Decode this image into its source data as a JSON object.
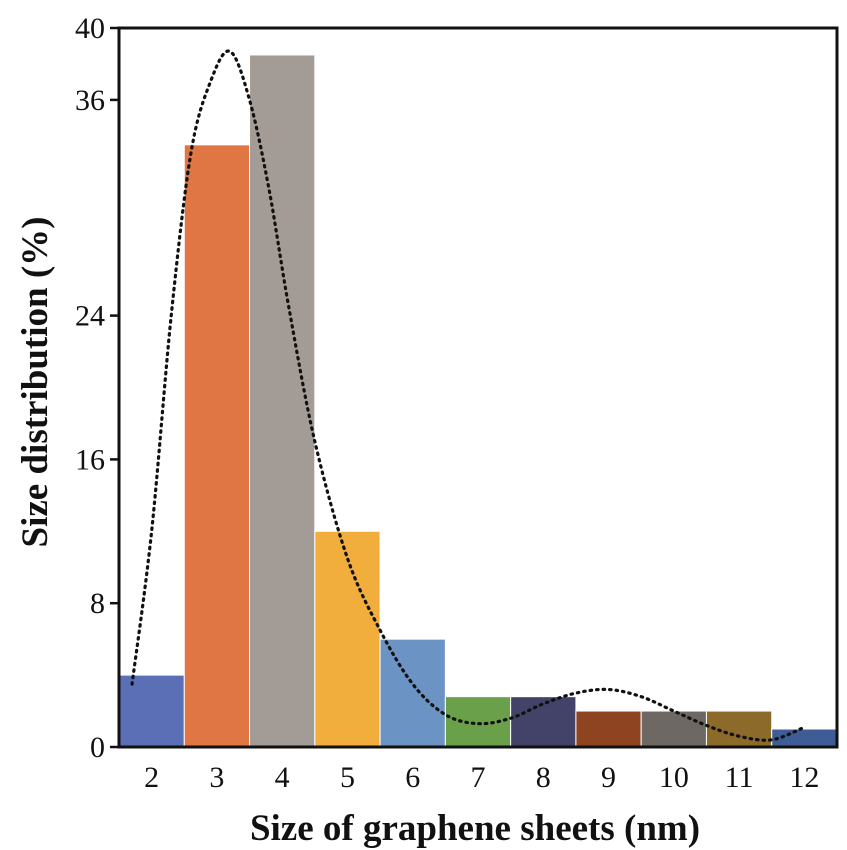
{
  "chart_data": {
    "type": "bar",
    "title": "",
    "xlabel": "Size of graphene sheets (nm)",
    "ylabel": "Size distribution (%)",
    "ylim": [
      0,
      40
    ],
    "y_ticks": [
      "0",
      "8",
      "16",
      "24",
      "36",
      "40"
    ],
    "x_ticks": [
      "2",
      "3",
      "4",
      "5",
      "6",
      "7",
      "8",
      "9",
      "10",
      "11",
      "12"
    ],
    "bars": [
      {
        "from": 2,
        "to": 3,
        "value": 4,
        "color": "#5b6fb6"
      },
      {
        "from": 3,
        "to": 4,
        "value": 33.5,
        "color": "#e07643"
      },
      {
        "from": 4,
        "to": 5,
        "value": 38.5,
        "color": "#a39b95"
      },
      {
        "from": 5,
        "to": 6,
        "value": 12,
        "color": "#f2ae3c"
      },
      {
        "from": 6,
        "to": 7,
        "value": 6,
        "color": "#6b93c4"
      },
      {
        "from": 7,
        "to": 8,
        "value": 2.8,
        "color": "#6aa049"
      },
      {
        "from": 8,
        "to": 9,
        "value": 2.8,
        "color": "#434268"
      },
      {
        "from": 9,
        "to": 10,
        "value": 2,
        "color": "#8e4420"
      },
      {
        "from": 10,
        "to": 11,
        "value": 2,
        "color": "#6e6864"
      },
      {
        "from": 11,
        "to": 12,
        "value": 2,
        "color": "#8c6a2a"
      },
      {
        "from": 12,
        "to": 13,
        "value": 1,
        "color": "#3f5c96"
      }
    ],
    "fit_curve": {
      "style": "dotted",
      "x": [
        2.2,
        2.5,
        2.8,
        3.1,
        3.4,
        3.7,
        4.0,
        4.3,
        4.6,
        5.0,
        5.5,
        6.0,
        6.5,
        7.0,
        7.5,
        8.0,
        8.5,
        9.0,
        9.5,
        10.0,
        10.5,
        11.0,
        11.5,
        12.0,
        12.5
      ],
      "y": [
        3.5,
        12,
        24,
        33,
        37,
        38.7,
        36,
        31,
        24.5,
        17,
        10.5,
        6.5,
        3.5,
        1.8,
        1.3,
        1.6,
        2.4,
        3,
        3.2,
        2.8,
        2,
        1.2,
        0.6,
        0.4,
        1.1
      ]
    },
    "grid": false,
    "legend": "none"
  }
}
